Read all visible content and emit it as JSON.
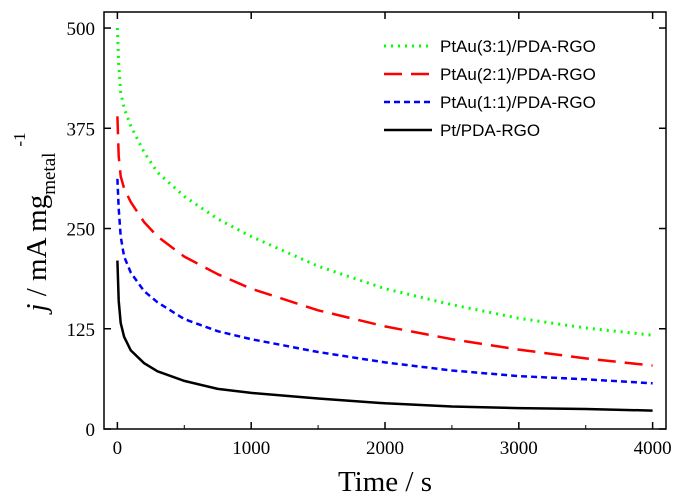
{
  "chart_data": {
    "type": "line",
    "xlabel": "Time / s",
    "ylabel": {
      "italic": "j",
      "main": " / mA mg",
      "subscript": "metal",
      "superscript": "-1"
    },
    "xlim": [
      -100,
      4100
    ],
    "ylim": [
      0,
      520
    ],
    "xticks": [
      0,
      1000,
      2000,
      3000,
      4000
    ],
    "yticks": [
      0,
      125,
      250,
      375,
      500
    ],
    "grid": false,
    "legend_position": "top-right",
    "series": [
      {
        "name": "PtAu(3:1)/PDA-RGO",
        "color": "#00ff00",
        "dash": "2,5",
        "width": 3,
        "x": [
          0,
          10,
          25,
          50,
          100,
          200,
          300,
          500,
          750,
          1000,
          1500,
          2000,
          2500,
          3000,
          3500,
          4000
        ],
        "y": [
          500,
          455,
          420,
          400,
          378,
          345,
          320,
          290,
          262,
          240,
          203,
          175,
          155,
          138,
          126,
          117
        ]
      },
      {
        "name": "PtAu(2:1)/PDA-RGO",
        "color": "#ff0000",
        "dash": "18,9",
        "width": 2.5,
        "x": [
          0,
          10,
          25,
          50,
          100,
          200,
          300,
          500,
          750,
          1000,
          1500,
          2000,
          2500,
          3000,
          3500,
          4000
        ],
        "y": [
          390,
          340,
          315,
          300,
          283,
          258,
          240,
          215,
          193,
          175,
          148,
          128,
          112,
          99,
          88,
          79
        ]
      },
      {
        "name": "PtAu(1:1)/PDA-RGO",
        "color": "#0000ff",
        "dash": "6,4",
        "width": 2.5,
        "x": [
          0,
          10,
          25,
          50,
          100,
          200,
          300,
          500,
          750,
          1000,
          1500,
          2000,
          2500,
          3000,
          3500,
          4000
        ],
        "y": [
          312,
          275,
          240,
          215,
          195,
          172,
          158,
          137,
          122,
          112,
          96,
          83,
          73,
          66,
          62,
          57
        ]
      },
      {
        "name": "Pt/PDA-RGO",
        "color": "#000000",
        "dash": "",
        "width": 2.5,
        "x": [
          0,
          10,
          25,
          50,
          100,
          200,
          300,
          500,
          750,
          1000,
          1500,
          2000,
          2500,
          3000,
          3500,
          4000
        ],
        "y": [
          210,
          160,
          132,
          115,
          98,
          82,
          72,
          60,
          50,
          45,
          38,
          32,
          28,
          26,
          25,
          23
        ]
      }
    ]
  }
}
